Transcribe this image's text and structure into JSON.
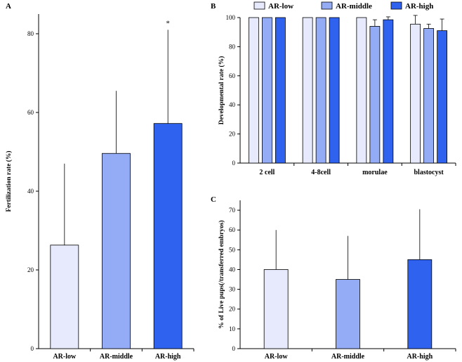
{
  "colors": {
    "low": "#e6eafc",
    "middle": "#94acf6",
    "high": "#2f62ee"
  },
  "chart_data": [
    {
      "id": "A",
      "panel_label": "A",
      "type": "bar",
      "categories": [
        "AR-low",
        "AR-middle",
        "AR-high"
      ],
      "values": [
        26.3,
        49.6,
        57.2
      ],
      "errors": [
        20.7,
        15.9,
        23.8
      ],
      "annotations": [
        "",
        "",
        "*"
      ],
      "ylabel": "Fertilization rate (%)",
      "xlabel": "",
      "ylim": [
        0,
        85
      ],
      "yticks": [
        0,
        20,
        40,
        60,
        80
      ]
    },
    {
      "id": "B",
      "panel_label": "B",
      "type": "bar",
      "categories": [
        "2 cell",
        "4-8cell",
        "morulae",
        "blastocyst"
      ],
      "series": [
        {
          "name": "AR-low",
          "values": [
            100,
            100,
            100,
            95.5
          ],
          "errors": [
            0,
            0,
            0,
            6
          ]
        },
        {
          "name": "AR-middle",
          "values": [
            100,
            100,
            94,
            92.5
          ],
          "errors": [
            0,
            0,
            4.5,
            3
          ]
        },
        {
          "name": "AR-high",
          "values": [
            100,
            100,
            98.5,
            91
          ],
          "errors": [
            0,
            0,
            2,
            8
          ]
        }
      ],
      "legend": [
        "AR-low",
        "AR-middle",
        "AR-high"
      ],
      "legend_position": "top",
      "ylabel": "Developmental rate (%)",
      "xlabel": "",
      "ylim": [
        0,
        100
      ],
      "yticks": [
        0,
        20,
        40,
        60,
        80,
        100
      ]
    },
    {
      "id": "C",
      "panel_label": "C",
      "type": "bar",
      "categories": [
        "AR-low",
        "AR-middle",
        "AR-high"
      ],
      "values": [
        40,
        35,
        45
      ],
      "errors": [
        20,
        22,
        25.5
      ],
      "ylabel": "% of Live pups(/transferred embryos)",
      "xlabel": "",
      "ylim": [
        0,
        75
      ],
      "yticks": [
        0,
        10,
        20,
        30,
        40,
        50,
        60,
        70
      ]
    }
  ]
}
